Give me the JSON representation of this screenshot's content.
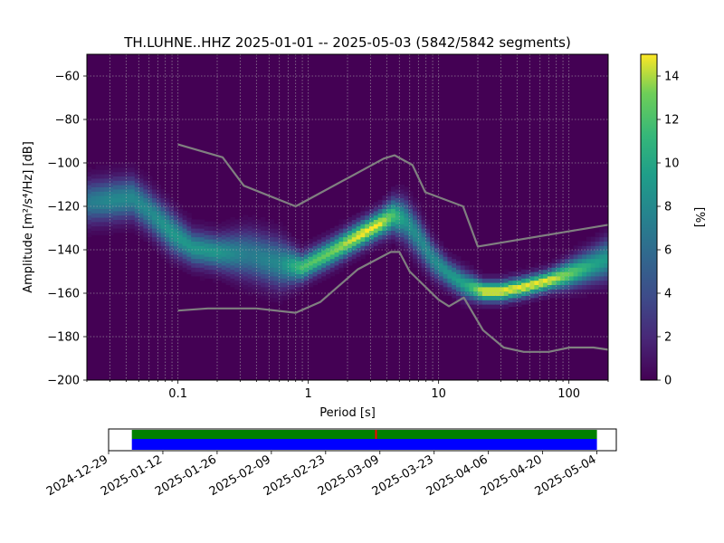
{
  "chart_data": {
    "type": "heatmap",
    "title": "TH.LUHNE..HHZ   2025-01-01 -- 2025-05-03  (5842/5842 segments)",
    "xlabel": "Period [s]",
    "ylabel": "Amplitude [m²/s⁴/Hz] [dB]",
    "xscale": "log",
    "xlim": [
      0.02,
      200
    ],
    "ylim": [
      -200,
      -50
    ],
    "xticks": [
      {
        "value": 0.1,
        "label": "0.1"
      },
      {
        "value": 1,
        "label": "1"
      },
      {
        "value": 10,
        "label": "10"
      },
      {
        "value": 100,
        "label": "100"
      }
    ],
    "yticks": [
      {
        "value": -60,
        "label": "−60"
      },
      {
        "value": -80,
        "label": "−80"
      },
      {
        "value": -100,
        "label": "−100"
      },
      {
        "value": -120,
        "label": "−120"
      },
      {
        "value": -140,
        "label": "−140"
      },
      {
        "value": -160,
        "label": "−160"
      },
      {
        "value": -180,
        "label": "−180"
      },
      {
        "value": -200,
        "label": "−200"
      }
    ],
    "grid": true,
    "colorbar": {
      "label": "[%]",
      "range": [
        0,
        15
      ],
      "colormap": "viridis",
      "ticks": [
        {
          "value": 0,
          "label": "0"
        },
        {
          "value": 2,
          "label": "2"
        },
        {
          "value": 4,
          "label": "4"
        },
        {
          "value": 6,
          "label": "6"
        },
        {
          "value": 8,
          "label": "8"
        },
        {
          "value": 10,
          "label": "10"
        },
        {
          "value": 12,
          "label": "12"
        },
        {
          "value": 14,
          "label": "14"
        }
      ]
    },
    "density_ridge": {
      "period": [
        0.02,
        0.03,
        0.045,
        0.06,
        0.09,
        0.13,
        0.2,
        0.35,
        0.6,
        0.9,
        1.5,
        2.5,
        3.5,
        4.5,
        5.5,
        7,
        9,
        12,
        16,
        22,
        30,
        45,
        70,
        100,
        150,
        200
      ],
      "amplitude_db": [
        -118,
        -117,
        -116,
        -122,
        -132,
        -139,
        -141,
        -142,
        -146,
        -148,
        -141,
        -133,
        -128,
        -124,
        -126,
        -134,
        -144,
        -151,
        -156,
        -159,
        -159,
        -157,
        -154,
        -151,
        -147,
        -144
      ],
      "spread_db": [
        6,
        6,
        6,
        6,
        6,
        5,
        5,
        7,
        7,
        4,
        4,
        4,
        4,
        5,
        6,
        6,
        5,
        4,
        4,
        3,
        3,
        3,
        3,
        4,
        5,
        6
      ],
      "peak_percent": [
        7,
        8,
        8,
        8,
        9,
        9,
        9,
        7,
        8,
        12,
        13,
        15,
        15,
        12,
        9,
        8,
        8,
        9,
        10,
        15,
        15,
        15,
        15,
        13,
        10,
        9
      ]
    },
    "noise_models": [
      {
        "period": [
          0.1,
          0.17,
          0.4,
          0.8,
          1.24,
          2.4,
          4.3,
          5,
          6,
          10,
          12,
          15.6,
          21.9,
          31.6,
          45,
          70,
          101,
          154,
          200
        ],
        "amplitude_db": [
          -168,
          -167,
          -167,
          -169,
          -164,
          -149,
          -141,
          -141,
          -150,
          -163,
          -166,
          -162,
          -177,
          -185,
          -187,
          -187,
          -185,
          -185,
          -186
        ]
      },
      {
        "period": [
          0.1,
          0.22,
          0.32,
          0.8,
          3.8,
          4.6,
          6.3,
          7.9,
          15.4,
          20,
          200
        ],
        "amplitude_db": [
          -91.5,
          -97.4,
          -110.5,
          -120,
          -98,
          -96.5,
          -101,
          -113.5,
          -120,
          -138.5,
          -128.5
        ]
      }
    ],
    "timeline": {
      "date_labels": [
        "2024-12-29",
        "2025-01-12",
        "2025-01-26",
        "2025-02-09",
        "2025-02-23",
        "2025-03-09",
        "2025-03-23",
        "2025-04-06",
        "2025-04-20",
        "2025-05-04"
      ],
      "date_range": [
        "2024-12-29",
        "2025-05-09"
      ],
      "coverage_start": "2025-01-04",
      "coverage_end": "2025-05-04",
      "marker_date": "2025-03-08",
      "colors": {
        "data": "#008000",
        "psd": "#0000ff",
        "marker": "#ff0000"
      }
    }
  }
}
